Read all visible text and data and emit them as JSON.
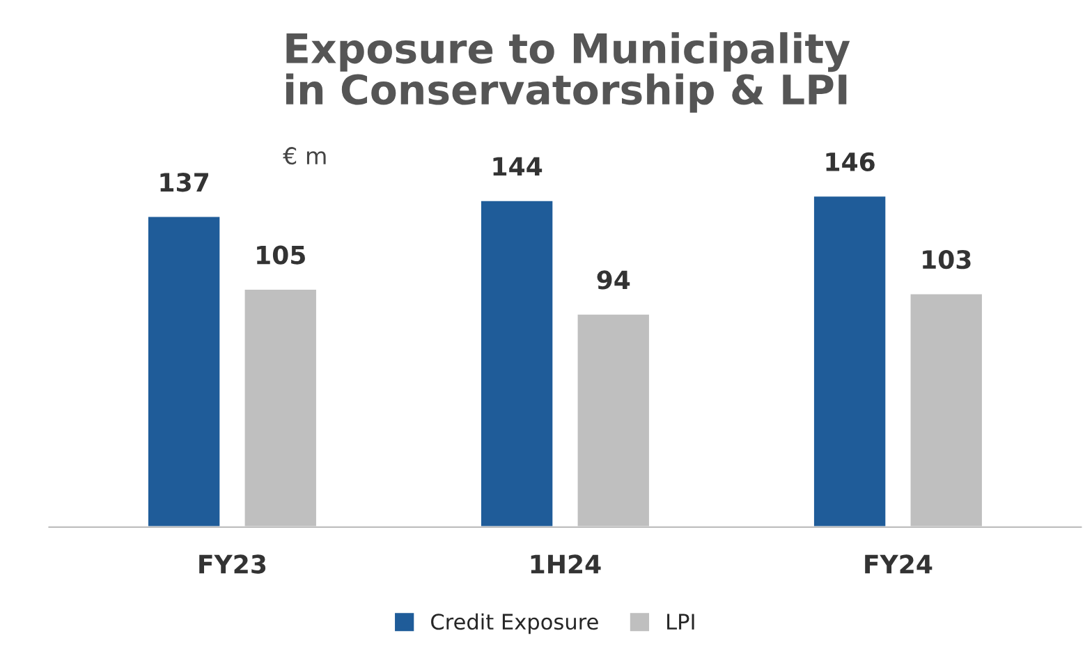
{
  "chart_data": {
    "type": "bar",
    "title": "Exposure to Municipality\nin Conservatorship & LPI",
    "subtitle": "€ m",
    "categories": [
      "FY23",
      "1H24",
      "FY24"
    ],
    "series": [
      {
        "name": "Credit Exposure",
        "color": "#1f5c99",
        "values": [
          137,
          144,
          146
        ]
      },
      {
        "name": "LPI",
        "color": "#bfbfbf",
        "values": [
          105,
          94,
          103
        ]
      }
    ],
    "data_labels": true,
    "legend": "bottom",
    "grid": false
  }
}
